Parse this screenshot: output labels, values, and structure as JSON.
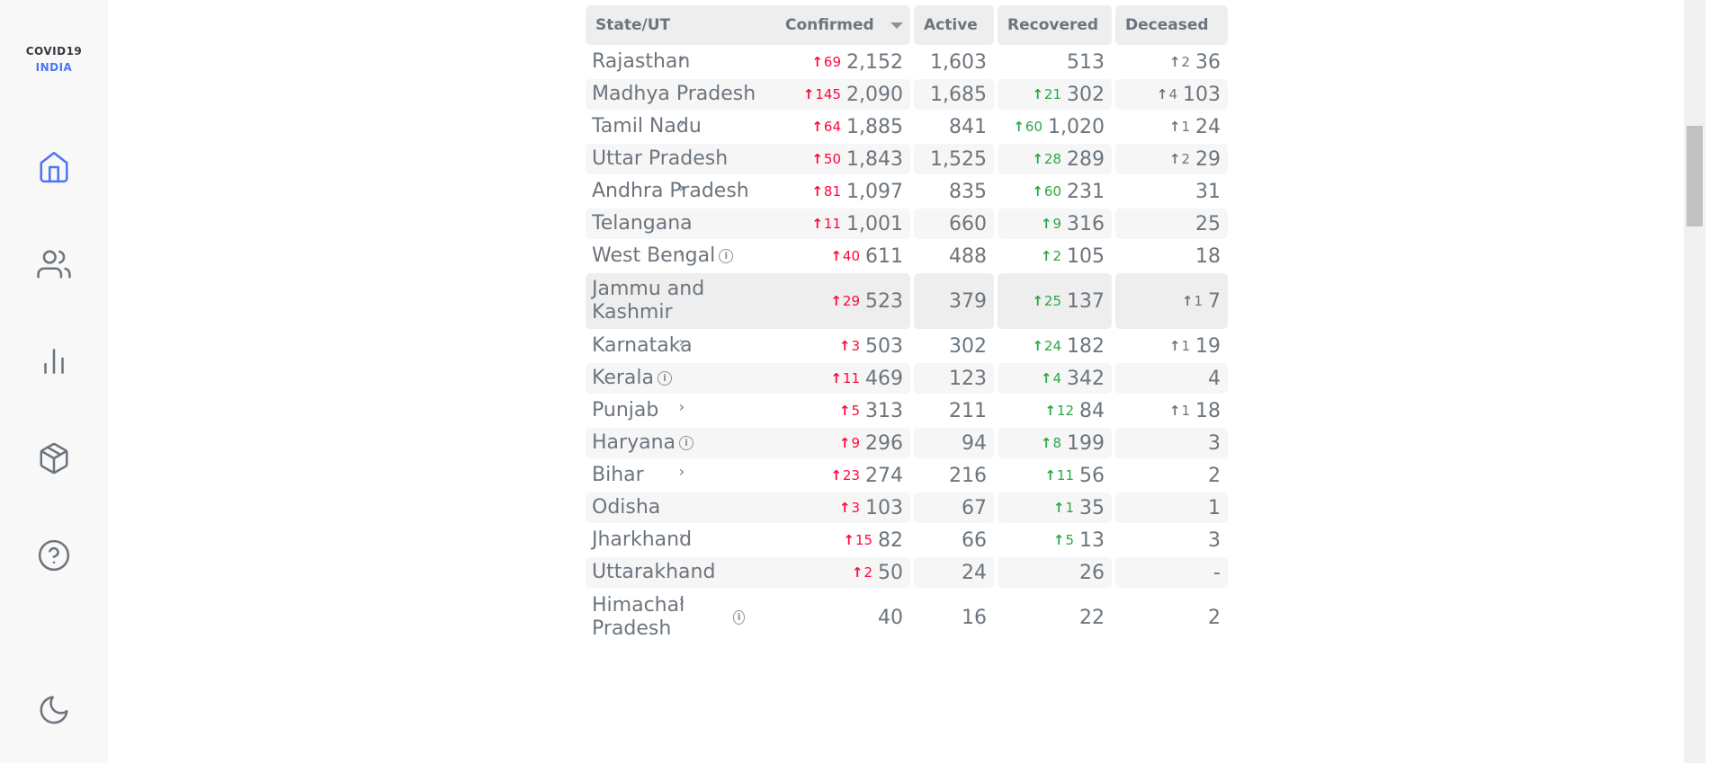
{
  "brand": {
    "line1": "COVID19",
    "line2": "INDIA"
  },
  "nav": [
    "home-icon",
    "users-icon",
    "bar-chart-icon",
    "package-icon",
    "help-circle-icon",
    "moon-icon"
  ],
  "colors": {
    "accent": "#4c75f2",
    "confirmed": "#ff073a",
    "recovered": "#28a745",
    "text": "#6c757d"
  },
  "table": {
    "headers": {
      "state": "State/UT",
      "confirmed": "Confirmed",
      "active": "Active",
      "recovered": "Recovered",
      "deceased": "Deceased"
    },
    "rows": [
      {
        "state": "Rajasthan",
        "info": false,
        "dc": "69",
        "confirmed": "2,152",
        "active": "1,603",
        "dr": "",
        "recovered": "513",
        "dd": "2",
        "deceased": "36"
      },
      {
        "state": "Madhya Pradesh",
        "info": false,
        "dc": "145",
        "confirmed": "2,090",
        "active": "1,685",
        "dr": "21",
        "recovered": "302",
        "dd": "4",
        "deceased": "103"
      },
      {
        "state": "Tamil Nadu",
        "info": false,
        "dc": "64",
        "confirmed": "1,885",
        "active": "841",
        "dr": "60",
        "recovered": "1,020",
        "dd": "1",
        "deceased": "24"
      },
      {
        "state": "Uttar Pradesh",
        "info": false,
        "dc": "50",
        "confirmed": "1,843",
        "active": "1,525",
        "dr": "28",
        "recovered": "289",
        "dd": "2",
        "deceased": "29"
      },
      {
        "state": "Andhra Pradesh",
        "info": false,
        "dc": "81",
        "confirmed": "1,097",
        "active": "835",
        "dr": "60",
        "recovered": "231",
        "dd": "",
        "deceased": "31"
      },
      {
        "state": "Telangana",
        "info": false,
        "dc": "11",
        "confirmed": "1,001",
        "active": "660",
        "dr": "9",
        "recovered": "316",
        "dd": "",
        "deceased": "25"
      },
      {
        "state": "West Bengal",
        "info": true,
        "dc": "40",
        "confirmed": "611",
        "active": "488",
        "dr": "2",
        "recovered": "105",
        "dd": "",
        "deceased": "18"
      },
      {
        "state": "Jammu and Kashmir",
        "info": false,
        "dc": "29",
        "confirmed": "523",
        "active": "379",
        "dr": "25",
        "recovered": "137",
        "dd": "1",
        "deceased": "7"
      },
      {
        "state": "Karnataka",
        "info": false,
        "dc": "3",
        "confirmed": "503",
        "active": "302",
        "dr": "24",
        "recovered": "182",
        "dd": "1",
        "deceased": "19"
      },
      {
        "state": "Kerala",
        "info": true,
        "dc": "11",
        "confirmed": "469",
        "active": "123",
        "dr": "4",
        "recovered": "342",
        "dd": "",
        "deceased": "4"
      },
      {
        "state": "Punjab",
        "info": false,
        "dc": "5",
        "confirmed": "313",
        "active": "211",
        "dr": "12",
        "recovered": "84",
        "dd": "1",
        "deceased": "18"
      },
      {
        "state": "Haryana",
        "info": true,
        "dc": "9",
        "confirmed": "296",
        "active": "94",
        "dr": "8",
        "recovered": "199",
        "dd": "",
        "deceased": "3"
      },
      {
        "state": "Bihar",
        "info": false,
        "dc": "23",
        "confirmed": "274",
        "active": "216",
        "dr": "11",
        "recovered": "56",
        "dd": "",
        "deceased": "2"
      },
      {
        "state": "Odisha",
        "info": false,
        "dc": "3",
        "confirmed": "103",
        "active": "67",
        "dr": "1",
        "recovered": "35",
        "dd": "",
        "deceased": "1"
      },
      {
        "state": "Jharkhand",
        "info": false,
        "dc": "15",
        "confirmed": "82",
        "active": "66",
        "dr": "5",
        "recovered": "13",
        "dd": "",
        "deceased": "3"
      },
      {
        "state": "Uttarakhand",
        "info": false,
        "dc": "2",
        "confirmed": "50",
        "active": "24",
        "dr": "",
        "recovered": "26",
        "dd": "",
        "deceased": "-"
      },
      {
        "state": "Himachal Pradesh",
        "info": true,
        "dc": "",
        "confirmed": "40",
        "active": "16",
        "dr": "",
        "recovered": "22",
        "dd": "",
        "deceased": "2"
      }
    ]
  }
}
